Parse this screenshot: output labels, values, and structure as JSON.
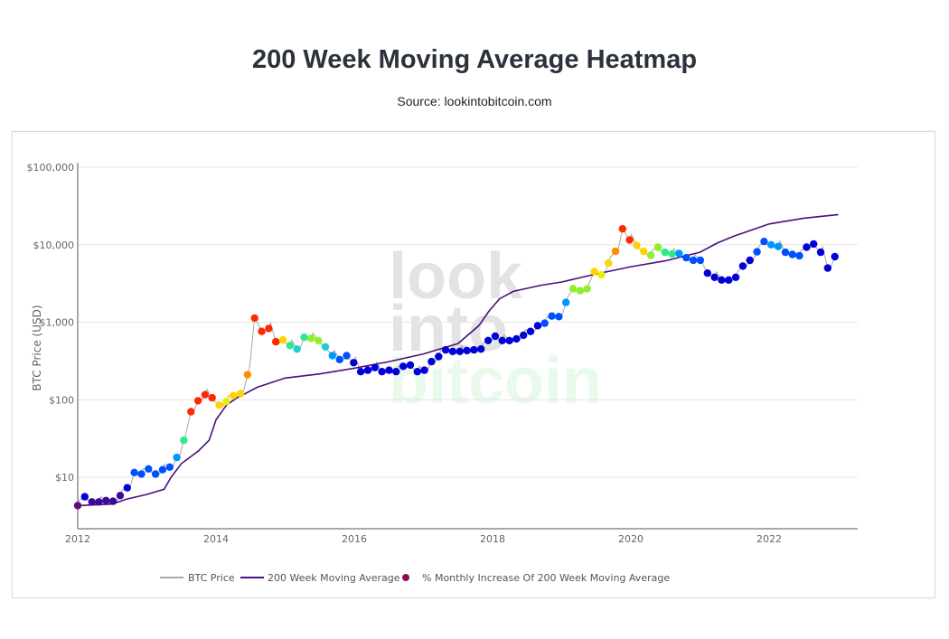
{
  "header": {
    "title": "200 Week Moving Average Heatmap",
    "subtitle": "Source: lookintobitcoin.com"
  },
  "watermark": [
    "look",
    "into",
    "bitcoin"
  ],
  "chart_data": {
    "type": "scatter",
    "title": "200 Week Moving Average Heatmap",
    "subtitle": "Source: lookintobitcoin.com",
    "xlabel": "",
    "ylabel": "BTC Price (USD)",
    "yscale": "log",
    "ylim": [
      3,
      130000
    ],
    "xlim": [
      2012.0,
      2023.1
    ],
    "x_ticks": [
      2012,
      2014,
      2016,
      2018,
      2020,
      2022
    ],
    "x_tick_labels": [
      "2012",
      "2014",
      "2016",
      "2018",
      "2020",
      "2022"
    ],
    "y_ticks": [
      10,
      100,
      1000,
      10000,
      100000
    ],
    "y_tick_labels": [
      "$10",
      "$100",
      "$1,000",
      "$10,000",
      "$100,000"
    ],
    "grid": true,
    "legend_position": "bottom-center",
    "legend": [
      "BTC Price",
      "200 Week Moving Average",
      "% Monthly Increase Of 200 Week Moving Average"
    ],
    "colors": {
      "price_line": "#a8a8a8",
      "ma_line": "#4b0f7a",
      "legend_dot": "#8c0a5a",
      "colorscale": [
        "#6a0a7a",
        "#3b0a9a",
        "#0000d8",
        "#0050ff",
        "#0096ff",
        "#1ccfd0",
        "#2eea8a",
        "#8ef02a",
        "#e6f000",
        "#ffd200",
        "#ff8c00",
        "#ff2a00"
      ]
    },
    "series": [
      {
        "name": "200 Week Moving Average",
        "type": "line",
        "x": [
          2012.0,
          2012.5,
          2012.7,
          2013.0,
          2013.25,
          2013.35,
          2013.5,
          2013.75,
          2013.9,
          2014.0,
          2014.15,
          2014.3,
          2014.6,
          2015.0,
          2015.5,
          2016.0,
          2016.5,
          2017.0,
          2017.5,
          2017.8,
          2017.95,
          2018.1,
          2018.3,
          2018.7,
          2019.0,
          2019.5,
          2020.0,
          2020.5,
          2021.0,
          2021.25,
          2021.5,
          2022.0,
          2022.5,
          2023.0
        ],
        "values": [
          4.3,
          4.5,
          5.2,
          6,
          7,
          10,
          15,
          22,
          30,
          55,
          85,
          105,
          145,
          190,
          215,
          255,
          310,
          390,
          530,
          900,
          1400,
          2000,
          2500,
          3000,
          3300,
          4200,
          5200,
          6200,
          8000,
          10500,
          13000,
          18500,
          22000,
          24500
        ]
      },
      {
        "name": "% Monthly Increase Of 200 Week Moving Average",
        "type": "scatter",
        "points": [
          [
            2012.0,
            4.3,
            0.0
          ],
          [
            2012.07,
            5.6,
            0.15
          ],
          [
            2012.17,
            4.8,
            0.05
          ],
          [
            2012.26,
            4.8,
            0.05
          ],
          [
            2012.35,
            5.0,
            0.05
          ],
          [
            2012.44,
            4.9,
            0.05
          ],
          [
            2012.52,
            5.8,
            0.05
          ],
          [
            2012.6,
            7.3,
            0.2
          ],
          [
            2012.7,
            11.5,
            0.25
          ],
          [
            2012.8,
            11.0,
            0.3
          ],
          [
            2012.9,
            12.8,
            0.3
          ],
          [
            2013.0,
            11.0,
            0.25
          ],
          [
            2013.1,
            12.5,
            0.3
          ],
          [
            2013.2,
            13.5,
            0.3
          ],
          [
            2013.3,
            18,
            0.35
          ],
          [
            2013.4,
            30,
            0.55
          ],
          [
            2013.5,
            70,
            0.97
          ],
          [
            2013.6,
            97,
            0.97
          ],
          [
            2013.7,
            116,
            0.99
          ],
          [
            2013.8,
            106,
            0.98
          ],
          [
            2013.9,
            85,
            0.8
          ],
          [
            2014.0,
            95,
            0.75
          ],
          [
            2014.1,
            113,
            0.78
          ],
          [
            2014.2,
            120,
            0.8
          ],
          [
            2014.3,
            210,
            0.88
          ],
          [
            2014.4,
            1130,
            1.0
          ],
          [
            2014.5,
            760,
            0.98
          ],
          [
            2014.6,
            830,
            1.0
          ],
          [
            2014.7,
            560,
            0.98
          ],
          [
            2014.8,
            590,
            0.8
          ],
          [
            2014.9,
            500,
            0.58
          ],
          [
            2015.0,
            450,
            0.45
          ],
          [
            2015.1,
            640,
            0.57
          ],
          [
            2015.2,
            620,
            0.6
          ],
          [
            2015.3,
            580,
            0.63
          ],
          [
            2015.4,
            480,
            0.43
          ],
          [
            2015.5,
            370,
            0.35
          ],
          [
            2015.6,
            330,
            0.25
          ],
          [
            2015.7,
            370,
            0.25
          ],
          [
            2015.8,
            300,
            0.2
          ],
          [
            2015.9,
            230,
            0.2
          ],
          [
            2016.0,
            240,
            0.2
          ],
          [
            2016.1,
            260,
            0.2
          ],
          [
            2016.2,
            230,
            0.2
          ],
          [
            2016.3,
            240,
            0.2
          ],
          [
            2016.4,
            230,
            0.2
          ],
          [
            2016.5,
            270,
            0.2
          ],
          [
            2016.6,
            280,
            0.2
          ],
          [
            2016.7,
            230,
            0.2
          ],
          [
            2016.8,
            240,
            0.2
          ],
          [
            2016.9,
            310,
            0.2
          ],
          [
            2017.0,
            360,
            0.2
          ],
          [
            2017.1,
            440,
            0.2
          ],
          [
            2017.2,
            420,
            0.2
          ],
          [
            2017.3,
            420,
            0.2
          ],
          [
            2017.4,
            430,
            0.2
          ],
          [
            2017.5,
            440,
            0.2
          ],
          [
            2017.6,
            450,
            0.2
          ],
          [
            2017.7,
            580,
            0.2
          ],
          [
            2017.8,
            660,
            0.2
          ],
          [
            2017.9,
            580,
            0.2
          ],
          [
            2018.0,
            580,
            0.2
          ],
          [
            2018.1,
            610,
            0.22
          ],
          [
            2018.2,
            680,
            0.22
          ],
          [
            2018.3,
            760,
            0.22
          ],
          [
            2018.4,
            900,
            0.22
          ],
          [
            2018.5,
            970,
            0.24
          ],
          [
            2018.6,
            1200,
            0.26
          ],
          [
            2018.7,
            1180,
            0.26
          ],
          [
            2018.8,
            1800,
            0.38
          ],
          [
            2018.9,
            2700,
            0.62
          ],
          [
            2019.0,
            2550,
            0.63
          ],
          [
            2019.1,
            2700,
            0.62
          ],
          [
            2019.2,
            4500,
            0.78
          ],
          [
            2019.3,
            4100,
            0.74
          ],
          [
            2019.4,
            5800,
            0.8
          ],
          [
            2019.5,
            8200,
            0.9
          ],
          [
            2019.6,
            16000,
            1.0
          ],
          [
            2019.7,
            11500,
            0.98
          ],
          [
            2019.8,
            9800,
            0.82
          ],
          [
            2019.9,
            8200,
            0.78
          ],
          [
            2020.0,
            7300,
            0.65
          ],
          [
            2020.1,
            9300,
            0.6
          ],
          [
            2020.2,
            8000,
            0.56
          ],
          [
            2020.3,
            7600,
            0.5
          ],
          [
            2020.4,
            7700,
            0.35
          ],
          [
            2020.5,
            6800,
            0.3
          ],
          [
            2020.6,
            6300,
            0.3
          ],
          [
            2020.7,
            6300,
            0.3
          ],
          [
            2020.8,
            4300,
            0.22
          ],
          [
            2020.9,
            3800,
            0.2
          ],
          [
            2021.0,
            3500,
            0.2
          ],
          [
            2021.1,
            3500,
            0.2
          ],
          [
            2021.2,
            3800,
            0.2
          ],
          [
            2021.3,
            5300,
            0.22
          ],
          [
            2021.4,
            6300,
            0.22
          ],
          [
            2021.5,
            8100,
            0.24
          ],
          [
            2021.6,
            11000,
            0.3
          ],
          [
            2021.7,
            10000,
            0.32
          ],
          [
            2021.8,
            9500,
            0.33
          ],
          [
            2021.9,
            8000,
            0.27
          ],
          [
            2022.0,
            7500,
            0.25
          ],
          [
            2022.1,
            7200,
            0.23
          ],
          [
            2022.2,
            9300,
            0.22
          ],
          [
            2022.3,
            10200,
            0.21
          ],
          [
            2022.4,
            8000,
            0.2
          ],
          [
            2022.5,
            5000,
            0.19
          ],
          [
            2022.6,
            7000,
            0.2
          ]
        ]
      }
    ]
  },
  "legend": {
    "items": [
      {
        "label": "BTC Price"
      },
      {
        "label": "200 Week Moving Average"
      },
      {
        "label": "% Monthly Increase Of 200 Week Moving Average"
      }
    ]
  }
}
